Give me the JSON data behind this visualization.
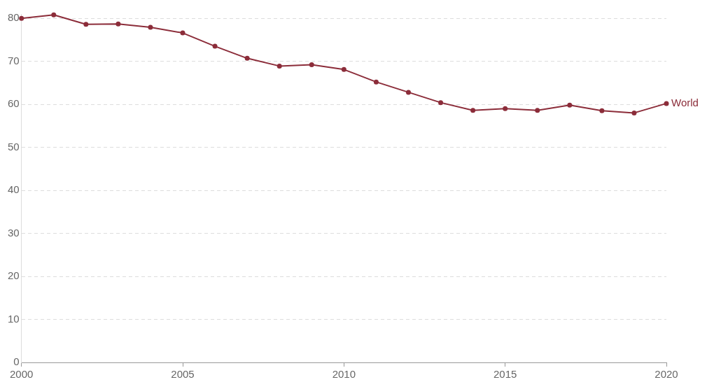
{
  "chart_data": {
    "type": "line",
    "x": [
      2000,
      2001,
      2002,
      2003,
      2004,
      2005,
      2006,
      2007,
      2008,
      2009,
      2010,
      2011,
      2012,
      2013,
      2014,
      2015,
      2016,
      2017,
      2018,
      2019,
      2020
    ],
    "series": [
      {
        "name": "World",
        "color": "#8c2d3a",
        "values": [
          80.0,
          80.8,
          78.6,
          78.7,
          77.9,
          76.6,
          73.5,
          70.7,
          68.9,
          69.2,
          68.1,
          65.2,
          62.8,
          60.4,
          58.6,
          59.0,
          58.6,
          59.8,
          58.5,
          58.0,
          60.2
        ]
      }
    ],
    "xlim": [
      2000,
      2020
    ],
    "xticks": [
      2000,
      2005,
      2010,
      2015,
      2020
    ],
    "ylim": [
      0,
      81
    ],
    "yticks": [
      0,
      10,
      20,
      30,
      40,
      50,
      60,
      70,
      80
    ],
    "grid": "y",
    "marker": "circle",
    "line_style": "solid"
  }
}
